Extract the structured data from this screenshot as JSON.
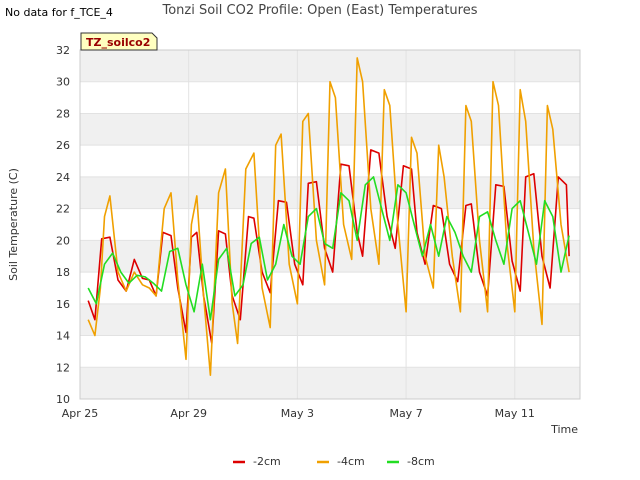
{
  "header": {
    "nodata_label": "No data for f_TCE_4",
    "title": "Tonzi Soil CO2 Profile: Open (East) Temperatures"
  },
  "badge": {
    "text": "TZ_soilco2",
    "bg": "#ffffc0",
    "color": "#990000"
  },
  "chart_data": {
    "type": "line",
    "title": "Tonzi Soil CO2 Profile: Open (East) Temperatures",
    "xlabel": "Time",
    "ylabel": "Soil Temperature (C)",
    "ylim": [
      10,
      32
    ],
    "yticks": [
      10,
      12,
      14,
      16,
      18,
      20,
      22,
      24,
      26,
      28,
      30,
      32
    ],
    "xlim_days": [
      0,
      18.4
    ],
    "xticks": [
      {
        "day": 0,
        "label": "Apr 25"
      },
      {
        "day": 4,
        "label": "Apr 29"
      },
      {
        "day": 8,
        "label": "May 3"
      },
      {
        "day": 12,
        "label": "May 7"
      },
      {
        "day": 16,
        "label": "May 11"
      }
    ],
    "grid": true,
    "legend_position": "bottom-center",
    "series": [
      {
        "name": "-2cm",
        "color": "#dd0000",
        "x": [
          0.3,
          0.55,
          0.8,
          1.1,
          1.4,
          1.7,
          2.0,
          2.3,
          2.55,
          2.8,
          3.05,
          3.35,
          3.6,
          3.9,
          4.1,
          4.3,
          4.55,
          4.85,
          5.1,
          5.35,
          5.6,
          5.9,
          6.2,
          6.4,
          6.7,
          7.0,
          7.3,
          7.6,
          7.9,
          8.2,
          8.4,
          8.7,
          9.0,
          9.3,
          9.6,
          9.9,
          10.2,
          10.4,
          10.7,
          11.0,
          11.3,
          11.6,
          11.9,
          12.2,
          12.4,
          12.7,
          13.0,
          13.3,
          13.6,
          13.9,
          14.2,
          14.4,
          14.7,
          15.0,
          15.3,
          15.6,
          15.9,
          16.2,
          16.4,
          16.7,
          17.0,
          17.3,
          17.6,
          17.9,
          18.0
        ],
        "y": [
          16.2,
          15.0,
          20.1,
          20.2,
          17.5,
          16.8,
          18.8,
          17.6,
          17.5,
          16.5,
          20.5,
          20.3,
          17.0,
          14.2,
          20.2,
          20.5,
          16.5,
          13.5,
          20.6,
          20.4,
          16.5,
          15.0,
          21.5,
          21.4,
          18.0,
          16.7,
          22.5,
          22.4,
          18.5,
          17.2,
          23.6,
          23.7,
          19.5,
          18.0,
          24.8,
          24.7,
          20.5,
          19.0,
          25.7,
          25.5,
          21.5,
          19.5,
          24.7,
          24.5,
          20.5,
          18.5,
          22.2,
          22.0,
          18.5,
          17.4,
          22.2,
          22.3,
          18.0,
          16.5,
          23.5,
          23.4,
          18.7,
          16.8,
          24.0,
          24.2,
          19.0,
          17.0,
          24.0,
          23.5,
          19.0
        ]
      },
      {
        "name": "-4cm",
        "color": "#f0a000",
        "x": [
          0.3,
          0.55,
          0.75,
          0.9,
          1.1,
          1.4,
          1.7,
          2.0,
          2.3,
          2.55,
          2.8,
          3.1,
          3.35,
          3.6,
          3.9,
          4.1,
          4.3,
          4.55,
          4.8,
          5.1,
          5.35,
          5.6,
          5.8,
          6.1,
          6.4,
          6.7,
          7.0,
          7.2,
          7.4,
          7.7,
          8.0,
          8.2,
          8.4,
          8.7,
          9.0,
          9.2,
          9.4,
          9.7,
          10.0,
          10.2,
          10.4,
          10.7,
          11.0,
          11.2,
          11.4,
          11.7,
          12.0,
          12.2,
          12.4,
          12.7,
          13.0,
          13.2,
          13.4,
          13.7,
          14.0,
          14.2,
          14.4,
          14.7,
          15.0,
          15.2,
          15.4,
          15.7,
          16.0,
          16.2,
          16.4,
          16.7,
          17.0,
          17.2,
          17.4,
          17.7,
          18.0
        ],
        "y": [
          15.0,
          14.0,
          17.0,
          21.5,
          22.8,
          18.0,
          16.8,
          18.0,
          17.2,
          17.0,
          16.5,
          22.0,
          23.0,
          17.5,
          12.5,
          21.0,
          22.8,
          16.5,
          11.5,
          23.0,
          24.5,
          16.0,
          13.5,
          24.5,
          25.5,
          17.0,
          14.5,
          26.0,
          26.7,
          18.5,
          16.0,
          27.5,
          28.0,
          20.0,
          17.2,
          30.0,
          29.0,
          21.0,
          18.8,
          31.5,
          30.0,
          22.0,
          18.5,
          29.5,
          28.5,
          21.0,
          15.5,
          26.5,
          25.5,
          19.0,
          17.0,
          26.0,
          24.0,
          19.0,
          15.5,
          28.5,
          27.5,
          20.0,
          15.5,
          30.0,
          28.5,
          20.0,
          15.5,
          29.5,
          27.5,
          19.5,
          14.7,
          28.5,
          27.0,
          21.0,
          18.0
        ]
      },
      {
        "name": "-8cm",
        "color": "#22dd22",
        "x": [
          0.3,
          0.6,
          0.9,
          1.2,
          1.5,
          1.8,
          2.1,
          2.4,
          2.7,
          3.0,
          3.3,
          3.6,
          3.9,
          4.2,
          4.5,
          4.8,
          5.1,
          5.4,
          5.7,
          6.0,
          6.3,
          6.6,
          6.9,
          7.2,
          7.5,
          7.8,
          8.1,
          8.4,
          8.7,
          9.0,
          9.3,
          9.6,
          9.9,
          10.2,
          10.5,
          10.8,
          11.1,
          11.4,
          11.7,
          12.0,
          12.3,
          12.6,
          12.9,
          13.2,
          13.5,
          13.8,
          14.1,
          14.4,
          14.7,
          15.0,
          15.3,
          15.6,
          15.9,
          16.2,
          16.5,
          16.8,
          17.1,
          17.4,
          17.7,
          18.0
        ],
        "y": [
          17.0,
          16.0,
          18.5,
          19.2,
          18.0,
          17.3,
          17.8,
          17.7,
          17.3,
          16.8,
          19.3,
          19.5,
          17.2,
          15.5,
          18.5,
          15.0,
          18.8,
          19.5,
          16.5,
          17.2,
          19.8,
          20.2,
          17.5,
          18.5,
          21.0,
          19.0,
          18.5,
          21.5,
          22.0,
          19.8,
          19.5,
          23.0,
          22.5,
          20.0,
          23.5,
          24.0,
          22.0,
          20.0,
          23.5,
          23.0,
          21.0,
          19.0,
          21.0,
          19.0,
          21.5,
          20.5,
          19.0,
          18.0,
          21.5,
          21.8,
          20.0,
          18.5,
          22.0,
          22.5,
          20.5,
          18.5,
          22.5,
          21.5,
          18.0,
          20.3
        ]
      }
    ]
  }
}
